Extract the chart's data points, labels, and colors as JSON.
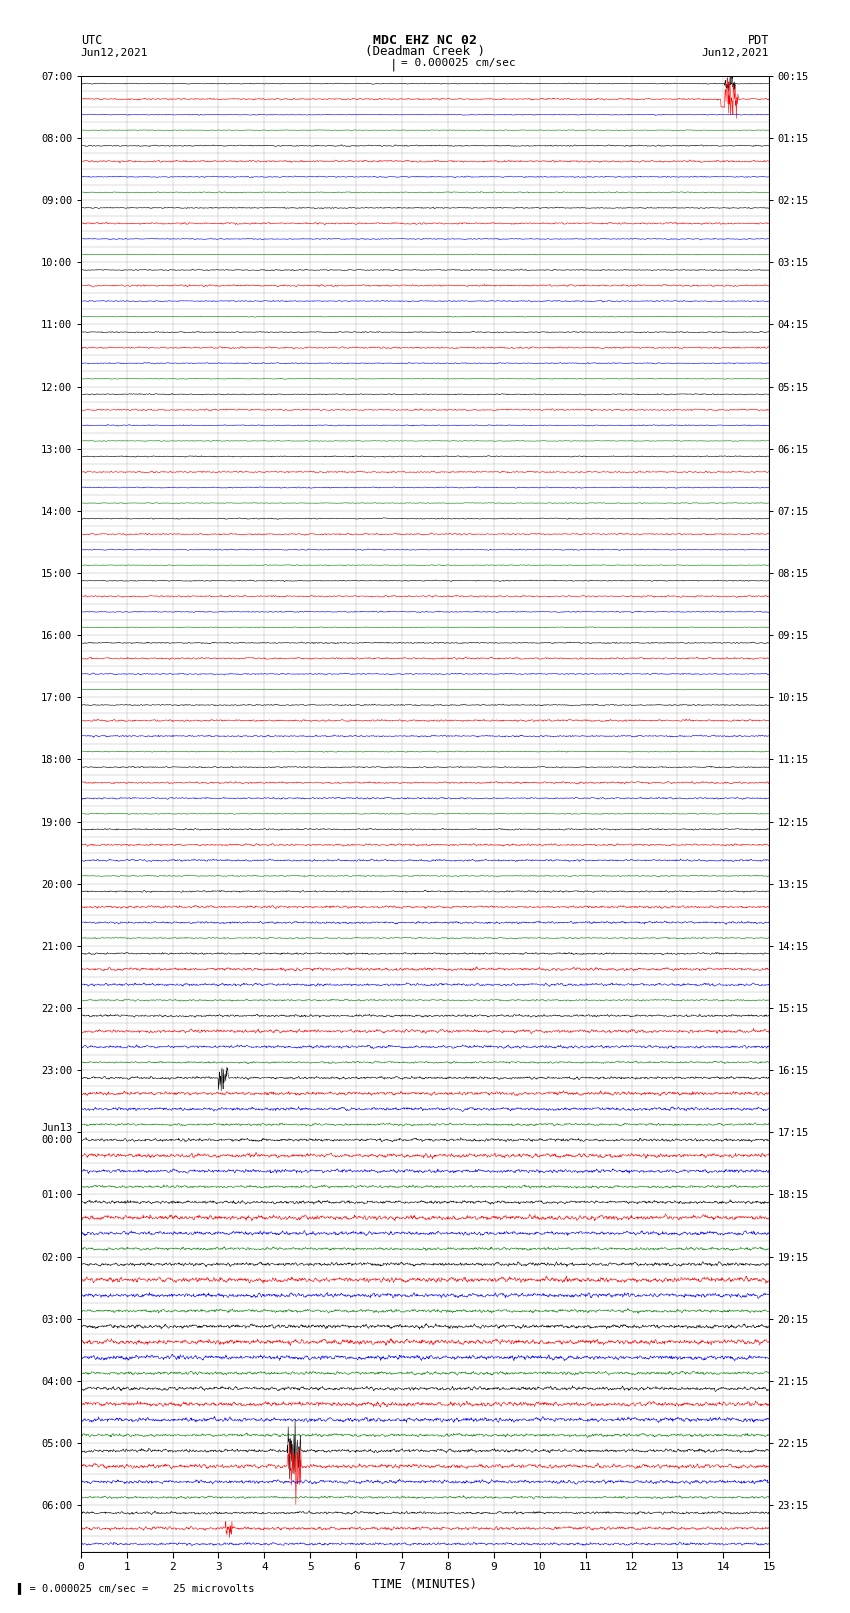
{
  "title_line1": "MDC EHZ NC 02",
  "title_line2": "(Deadman Creek )",
  "scale_label": "= 0.000025 cm/sec",
  "left_label": "UTC",
  "left_date": "Jun12,2021",
  "right_label": "PDT",
  "right_date": "Jun12,2021",
  "bottom_label": "TIME (MINUTES)",
  "bottom_note": "= 0.000025 cm/sec =    25 microvolts",
  "xlabel_ticks": [
    0,
    1,
    2,
    3,
    4,
    5,
    6,
    7,
    8,
    9,
    10,
    11,
    12,
    13,
    14,
    15
  ],
  "utc_times": [
    "07:00",
    "",
    "",
    "",
    "08:00",
    "",
    "",
    "",
    "09:00",
    "",
    "",
    "",
    "10:00",
    "",
    "",
    "",
    "11:00",
    "",
    "",
    "",
    "12:00",
    "",
    "",
    "",
    "13:00",
    "",
    "",
    "",
    "14:00",
    "",
    "",
    "",
    "15:00",
    "",
    "",
    "",
    "16:00",
    "",
    "",
    "",
    "17:00",
    "",
    "",
    "",
    "18:00",
    "",
    "",
    "",
    "19:00",
    "",
    "",
    "",
    "20:00",
    "",
    "",
    "",
    "21:00",
    "",
    "",
    "",
    "22:00",
    "",
    "",
    "",
    "23:00",
    "",
    "",
    "",
    "Jun13\n00:00",
    "",
    "",
    "",
    "01:00",
    "",
    "",
    "",
    "02:00",
    "",
    "",
    "",
    "03:00",
    "",
    "",
    "",
    "04:00",
    "",
    "",
    "",
    "05:00",
    "",
    "",
    "",
    "06:00",
    "",
    ""
  ],
  "pdt_times": [
    "00:15",
    "",
    "",
    "",
    "01:15",
    "",
    "",
    "",
    "02:15",
    "",
    "",
    "",
    "03:15",
    "",
    "",
    "",
    "04:15",
    "",
    "",
    "",
    "05:15",
    "",
    "",
    "",
    "06:15",
    "",
    "",
    "",
    "07:15",
    "",
    "",
    "",
    "08:15",
    "",
    "",
    "",
    "09:15",
    "",
    "",
    "",
    "10:15",
    "",
    "",
    "",
    "11:15",
    "",
    "",
    "",
    "12:15",
    "",
    "",
    "",
    "13:15",
    "",
    "",
    "",
    "14:15",
    "",
    "",
    "",
    "15:15",
    "",
    "",
    "",
    "16:15",
    "",
    "",
    "",
    "17:15",
    "",
    "",
    "",
    "18:15",
    "",
    "",
    "",
    "19:15",
    "",
    "",
    "",
    "20:15",
    "",
    "",
    "",
    "21:15",
    "",
    "",
    "",
    "22:15",
    "",
    "",
    "",
    "23:15",
    "",
    ""
  ],
  "n_rows": 95,
  "n_cols": 1800,
  "colors": [
    "black",
    "red",
    "blue",
    "green"
  ],
  "bg_color": "white",
  "figsize": [
    8.5,
    16.13
  ],
  "dpi": 100,
  "xmin": 0,
  "xmax": 15,
  "noise_levels": [
    0.06,
    0.1,
    0.06,
    0.04,
    0.08,
    0.12,
    0.08,
    0.06,
    0.07,
    0.11,
    0.07,
    0.05,
    0.07,
    0.11,
    0.08,
    0.05,
    0.07,
    0.11,
    0.07,
    0.05,
    0.07,
    0.1,
    0.07,
    0.05,
    0.07,
    0.1,
    0.07,
    0.05,
    0.07,
    0.1,
    0.07,
    0.05,
    0.07,
    0.1,
    0.07,
    0.05,
    0.08,
    0.11,
    0.08,
    0.05,
    0.08,
    0.12,
    0.1,
    0.06,
    0.08,
    0.12,
    0.1,
    0.06,
    0.09,
    0.13,
    0.12,
    0.07,
    0.1,
    0.15,
    0.14,
    0.08,
    0.12,
    0.18,
    0.16,
    0.1,
    0.14,
    0.2,
    0.18,
    0.12,
    0.16,
    0.22,
    0.2,
    0.14,
    0.18,
    0.25,
    0.22,
    0.16,
    0.2,
    0.28,
    0.24,
    0.18,
    0.22,
    0.3,
    0.26,
    0.2,
    0.24,
    0.3,
    0.28,
    0.2,
    0.22,
    0.28,
    0.26,
    0.18,
    0.2,
    0.25,
    0.22,
    0.14,
    0.16,
    0.2,
    0.16
  ]
}
